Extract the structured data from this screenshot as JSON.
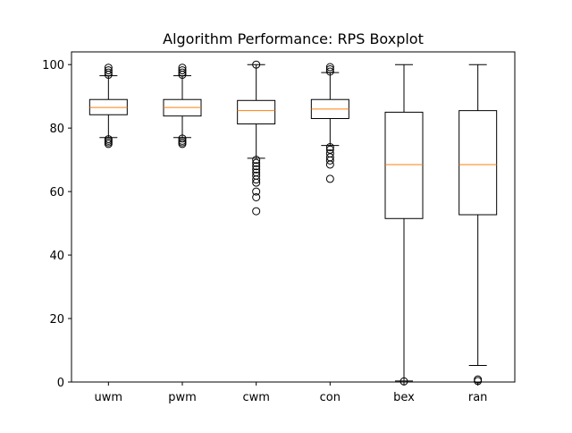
{
  "chart_data": {
    "type": "boxplot",
    "title": "Algorithm Performance: RPS Boxplot",
    "xlabel": "",
    "ylabel": "",
    "ylim": [
      0,
      104
    ],
    "yticks": [
      0,
      20,
      40,
      60,
      80,
      100
    ],
    "grid": false,
    "colors": {
      "box": "#000000",
      "median": "#ff7f0e",
      "background": "#ffffff"
    },
    "categories": [
      "uwm",
      "pwm",
      "cwm",
      "con",
      "bex",
      "ran"
    ],
    "boxes": [
      {
        "label": "uwm",
        "whisker_low": 77.0,
        "q1": 84.2,
        "median": 86.5,
        "q3": 89.0,
        "whisker_high": 96.5,
        "outliers": [
          75.0,
          75.5,
          76.0,
          76.5,
          96.8,
          97.5,
          98.2,
          99.0
        ]
      },
      {
        "label": "pwm",
        "whisker_low": 77.0,
        "q1": 83.8,
        "median": 86.5,
        "q3": 89.0,
        "whisker_high": 96.5,
        "outliers": [
          75.0,
          75.5,
          76.0,
          76.7,
          96.8,
          97.5,
          98.2,
          99.0
        ]
      },
      {
        "label": "cwm",
        "whisker_low": 70.5,
        "q1": 81.3,
        "median": 85.5,
        "q3": 88.7,
        "whisker_high": 100.0,
        "outliers": [
          53.8,
          58.2,
          60.0,
          62.8,
          63.8,
          65.0,
          66.0,
          67.0,
          68.0,
          69.0,
          70.0,
          100.0
        ]
      },
      {
        "label": "con",
        "whisker_low": 74.5,
        "q1": 83.0,
        "median": 86.0,
        "q3": 89.0,
        "whisker_high": 97.5,
        "outliers": [
          64.0,
          68.5,
          69.8,
          70.8,
          72.0,
          73.2,
          74.0,
          97.8,
          98.5,
          99.2
        ]
      },
      {
        "label": "bex",
        "whisker_low": 0.3,
        "q1": 51.5,
        "median": 68.5,
        "q3": 85.0,
        "whisker_high": 100.0,
        "outliers": [
          0.2
        ]
      },
      {
        "label": "ran",
        "whisker_low": 5.2,
        "q1": 52.7,
        "median": 68.5,
        "q3": 85.5,
        "whisker_high": 100.0,
        "outliers": [
          0.3,
          0.8
        ]
      }
    ]
  }
}
